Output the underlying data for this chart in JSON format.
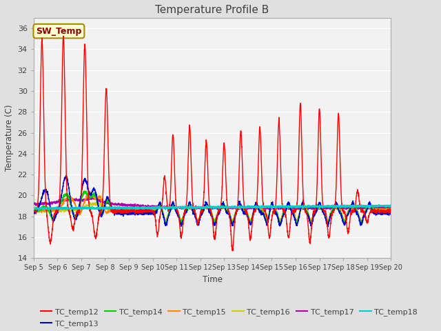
{
  "title": "Temperature Profile B",
  "xlabel": "Time",
  "ylabel": "Temperature (C)",
  "ylim": [
    14,
    37
  ],
  "yticks": [
    14,
    16,
    18,
    20,
    22,
    24,
    26,
    28,
    30,
    32,
    34,
    36
  ],
  "xlim_days": [
    5,
    20
  ],
  "xtick_labels": [
    "Sep 5",
    "Sep 6",
    "Sep 7",
    "Sep 8",
    "Sep 9",
    "Sep 10",
    "Sep 11",
    "Sep 12",
    "Sep 13",
    "Sep 14",
    "Sep 15",
    "Sep 16",
    "Sep 17",
    "Sep 18",
    "Sep 19",
    "Sep 20"
  ],
  "sw_temp_annotation": "SW_Temp",
  "legend_entries": [
    "TC_temp12",
    "TC_temp13",
    "TC_temp14",
    "TC_temp15",
    "TC_temp16",
    "TC_temp17",
    "TC_temp18"
  ],
  "line_colors": {
    "TC_temp12": "#FF0000",
    "TC_temp13": "#0000CC",
    "TC_temp14": "#00CC00",
    "TC_temp15": "#FF8800",
    "TC_temp16": "#CCCC00",
    "TC_temp17": "#AA00AA",
    "TC_temp18": "#00CCCC"
  },
  "fig_facecolor": "#E0E0E0",
  "plot_facecolor": "#F2F2F2",
  "grid_color": "#FFFFFF",
  "title_color": "#404040",
  "axis_label_color": "#404040",
  "tick_color": "#404040"
}
